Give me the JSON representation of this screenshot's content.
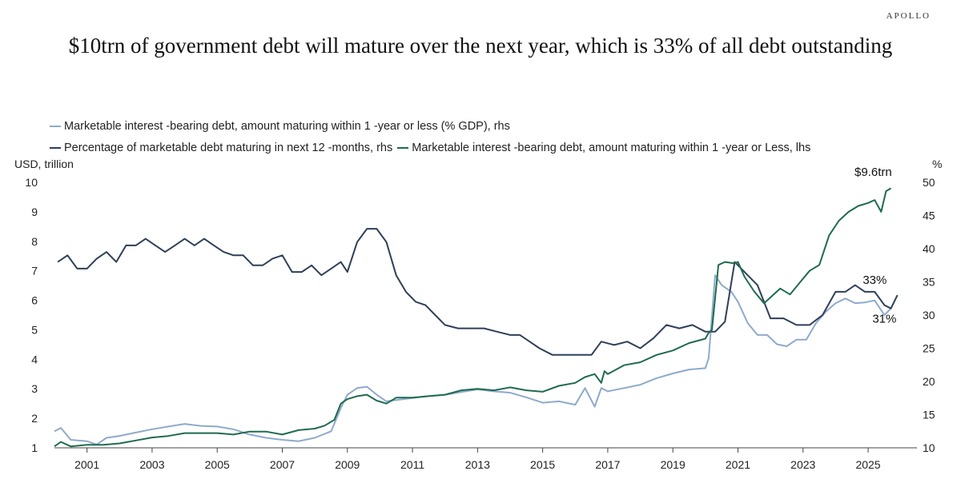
{
  "brand": "APOLLO",
  "title": "$10trn of government debt will mature over the next year, which is 33% of all debt outstanding",
  "legend": [
    {
      "label": "Marketable interest -bearing debt, amount maturing within 1 -year or less (% GDP), rhs",
      "color": "#8eaacb"
    },
    {
      "label": "Percentage of marketable debt maturing in next 12 -months, rhs",
      "color": "#2f3f58"
    },
    {
      "label": "Marketable interest -bearing debt, amount maturing within 1 -year or Less, lhs",
      "color": "#1f6b4e"
    }
  ],
  "left_unit": "USD, trillion",
  "right_unit": "%",
  "chart_data": {
    "type": "line",
    "title": "$10trn of government debt will mature over the next year, which is 33% of all debt outstanding",
    "xlim": [
      2000,
      2026.5
    ],
    "x_ticks": [
      "2001",
      "2003",
      "2005",
      "2007",
      "2009",
      "2011",
      "2013",
      "2015",
      "2017",
      "2019",
      "2021",
      "2023",
      "2025"
    ],
    "y_left": {
      "label": "USD, trillion",
      "lim": [
        1,
        10
      ],
      "ticks": [
        "1",
        "2",
        "3",
        "4",
        "5",
        "6",
        "7",
        "8",
        "9",
        "10"
      ]
    },
    "y_right": {
      "label": "%",
      "lim": [
        10,
        50
      ],
      "ticks": [
        "10",
        "15",
        "20",
        "25",
        "30",
        "35",
        "40",
        "45",
        "50"
      ]
    },
    "grid": false,
    "legend_position": "top-left",
    "annotations": [
      {
        "text": "$9.6trn",
        "x": 2025.5,
        "y": 10.0,
        "axis": "left"
      },
      {
        "text": "33%",
        "x": 2025.5,
        "y": 34.0,
        "axis": "right"
      },
      {
        "text": "31%",
        "x": 2025.5,
        "y": 29.6,
        "axis": "right"
      }
    ],
    "series": [
      {
        "name": "Marketable interest -bearing debt, amount maturing within 1 -year or less (% GDP), rhs",
        "axis": "right",
        "color": "#8eaacb",
        "x": [
          2000.0,
          2000.2,
          2000.5,
          2001.0,
          2001.3,
          2001.6,
          2002.0,
          2002.5,
          2003.0,
          2003.5,
          2004.0,
          2004.5,
          2005.0,
          2005.5,
          2006.0,
          2006.5,
          2007.0,
          2007.5,
          2008.0,
          2008.5,
          2008.8,
          2009.0,
          2009.3,
          2009.6,
          2009.9,
          2010.2,
          2010.5,
          2011.0,
          2011.5,
          2012.0,
          2012.5,
          2013.0,
          2013.5,
          2014.0,
          2014.5,
          2015.0,
          2015.5,
          2016.0,
          2016.3,
          2016.6,
          2016.8,
          2017.0,
          2017.5,
          2018.0,
          2018.5,
          2019.0,
          2019.5,
          2020.0,
          2020.1,
          2020.3,
          2020.5,
          2020.8,
          2021.0,
          2021.3,
          2021.6,
          2021.9,
          2022.2,
          2022.5,
          2022.8,
          2023.1,
          2023.4,
          2023.7,
          2024.0,
          2024.3,
          2024.6,
          2024.9,
          2025.2,
          2025.5,
          2025.7
        ],
        "y": [
          12.5,
          13.0,
          11.2,
          11.0,
          10.5,
          11.5,
          11.8,
          12.3,
          12.8,
          13.2,
          13.6,
          13.3,
          13.2,
          12.8,
          12.0,
          11.5,
          11.2,
          11.0,
          11.5,
          12.5,
          16.0,
          18.0,
          19.0,
          19.2,
          18.0,
          17.0,
          17.2,
          17.5,
          17.8,
          18.0,
          18.4,
          18.8,
          18.5,
          18.3,
          17.6,
          16.8,
          17.0,
          16.5,
          19.0,
          16.2,
          19.0,
          18.5,
          19.0,
          19.5,
          20.5,
          21.2,
          21.8,
          22.0,
          23.5,
          36.0,
          34.5,
          33.5,
          32.0,
          28.8,
          27.0,
          27.0,
          25.6,
          25.3,
          26.3,
          26.3,
          28.8,
          30.5,
          31.8,
          32.5,
          31.8,
          31.9,
          32.2,
          30.0,
          31.0
        ]
      },
      {
        "name": "Percentage of marketable debt maturing in next 12 -months, rhs",
        "axis": "right",
        "color": "#2f3f58",
        "x": [
          2000.1,
          2000.4,
          2000.7,
          2001.0,
          2001.3,
          2001.6,
          2001.9,
          2002.2,
          2002.5,
          2002.8,
          2003.1,
          2003.4,
          2003.7,
          2004.0,
          2004.3,
          2004.6,
          2004.9,
          2005.2,
          2005.5,
          2005.8,
          2006.1,
          2006.4,
          2006.7,
          2007.0,
          2007.3,
          2007.6,
          2007.9,
          2008.2,
          2008.5,
          2008.8,
          2009.0,
          2009.3,
          2009.6,
          2009.9,
          2010.2,
          2010.5,
          2010.8,
          2011.1,
          2011.4,
          2011.7,
          2012.0,
          2012.4,
          2012.8,
          2013.2,
          2013.6,
          2014.0,
          2014.3,
          2014.6,
          2014.9,
          2015.3,
          2015.7,
          2016.1,
          2016.5,
          2016.8,
          2017.2,
          2017.6,
          2018.0,
          2018.4,
          2018.8,
          2019.2,
          2019.6,
          2020.0,
          2020.3,
          2020.6,
          2020.9,
          2021.2,
          2021.6,
          2022.0,
          2022.4,
          2022.8,
          2023.2,
          2023.6,
          2024.0,
          2024.3,
          2024.6,
          2024.9,
          2025.2,
          2025.5,
          2025.7,
          2025.9
        ],
        "y": [
          38.0,
          39.0,
          37.0,
          37.0,
          38.5,
          39.5,
          38.0,
          40.5,
          40.5,
          41.5,
          40.5,
          39.5,
          40.5,
          41.5,
          40.5,
          41.5,
          40.5,
          39.5,
          39.0,
          39.0,
          37.5,
          37.5,
          38.5,
          39.0,
          36.5,
          36.5,
          37.5,
          36.0,
          37.0,
          38.0,
          36.5,
          41.0,
          43.0,
          43.0,
          41.0,
          36.0,
          33.5,
          32.0,
          31.5,
          30.0,
          28.5,
          28.0,
          28.0,
          28.0,
          27.5,
          27.0,
          27.0,
          26.0,
          25.0,
          24.0,
          24.0,
          24.0,
          24.0,
          26.0,
          25.5,
          26.0,
          25.0,
          26.5,
          28.5,
          28.0,
          28.5,
          27.5,
          27.5,
          29.0,
          38.0,
          36.5,
          34.5,
          29.5,
          29.5,
          28.5,
          28.5,
          30.0,
          33.5,
          33.5,
          34.5,
          33.5,
          33.5,
          31.5,
          31.0,
          33.0
        ]
      },
      {
        "name": "Marketable interest -bearing debt, amount maturing within 1 -year or Less, lhs",
        "axis": "left",
        "color": "#1f6b4e",
        "x": [
          2000.0,
          2000.2,
          2000.5,
          2001.0,
          2001.5,
          2002.0,
          2002.5,
          2003.0,
          2003.5,
          2004.0,
          2004.5,
          2005.0,
          2005.5,
          2006.0,
          2006.5,
          2007.0,
          2007.5,
          2008.0,
          2008.3,
          2008.6,
          2008.8,
          2009.0,
          2009.3,
          2009.6,
          2009.9,
          2010.2,
          2010.5,
          2011.0,
          2011.5,
          2012.0,
          2012.5,
          2013.0,
          2013.5,
          2014.0,
          2014.5,
          2015.0,
          2015.5,
          2016.0,
          2016.3,
          2016.6,
          2016.8,
          2016.9,
          2017.0,
          2017.5,
          2018.0,
          2018.5,
          2019.0,
          2019.5,
          2020.0,
          2020.1,
          2020.2,
          2020.4,
          2020.6,
          2020.9,
          2021.0,
          2021.2,
          2021.5,
          2021.8,
          2022.0,
          2022.3,
          2022.6,
          2022.9,
          2023.2,
          2023.5,
          2023.8,
          2024.1,
          2024.4,
          2024.7,
          2025.0,
          2025.2,
          2025.4,
          2025.55,
          2025.7
        ],
        "y": [
          1.05,
          1.2,
          1.05,
          1.1,
          1.1,
          1.15,
          1.25,
          1.35,
          1.4,
          1.5,
          1.5,
          1.5,
          1.45,
          1.55,
          1.55,
          1.45,
          1.6,
          1.65,
          1.75,
          1.95,
          2.5,
          2.65,
          2.75,
          2.8,
          2.6,
          2.5,
          2.7,
          2.7,
          2.75,
          2.8,
          2.95,
          3.0,
          2.95,
          3.05,
          2.95,
          2.9,
          3.1,
          3.2,
          3.4,
          3.5,
          3.2,
          3.6,
          3.5,
          3.8,
          3.9,
          4.15,
          4.3,
          4.55,
          4.7,
          4.9,
          5.0,
          7.2,
          7.3,
          7.25,
          7.3,
          6.8,
          6.3,
          5.9,
          6.1,
          6.4,
          6.2,
          6.6,
          7.0,
          7.2,
          8.2,
          8.7,
          9.0,
          9.2,
          9.3,
          9.4,
          9.0,
          9.7,
          9.8
        ]
      }
    ]
  }
}
